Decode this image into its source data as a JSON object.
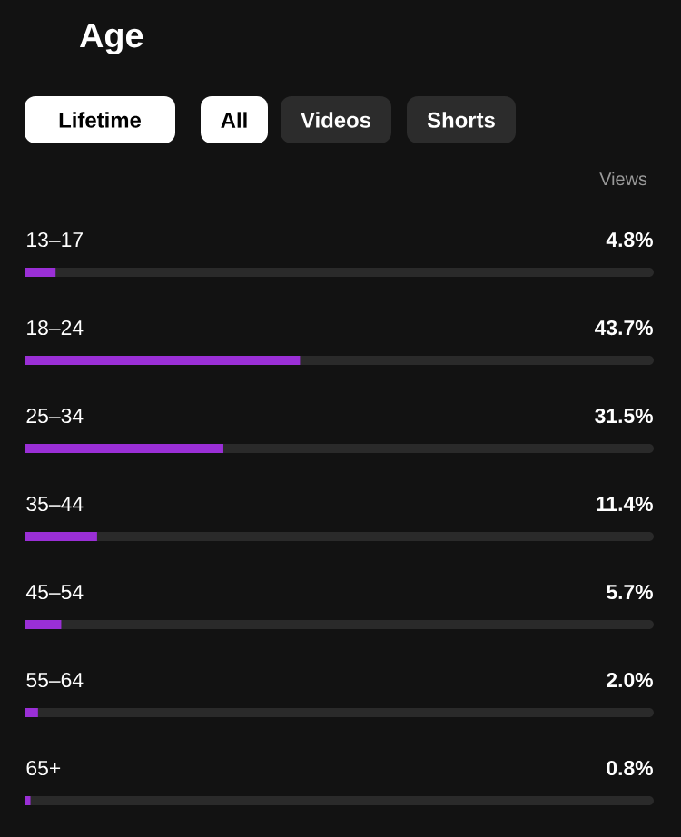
{
  "chart_data": {
    "type": "bar",
    "orientation": "horizontal",
    "title": "Age",
    "annotations": [
      "Lifetime",
      "All",
      "Videos",
      "Shorts",
      "Views"
    ],
    "categories": [
      "13–17",
      "18–24",
      "25–34",
      "35–44",
      "45–54",
      "55–64",
      "65+"
    ],
    "values": [
      4.8,
      43.7,
      31.5,
      11.4,
      5.7,
      2.0,
      0.8
    ],
    "value_labels": [
      "4.8%",
      "43.7%",
      "31.5%",
      "11.4%",
      "5.7%",
      "2.0%",
      "0.8%"
    ],
    "color": "#9a2fd6",
    "xlim": [
      0,
      100
    ]
  }
}
